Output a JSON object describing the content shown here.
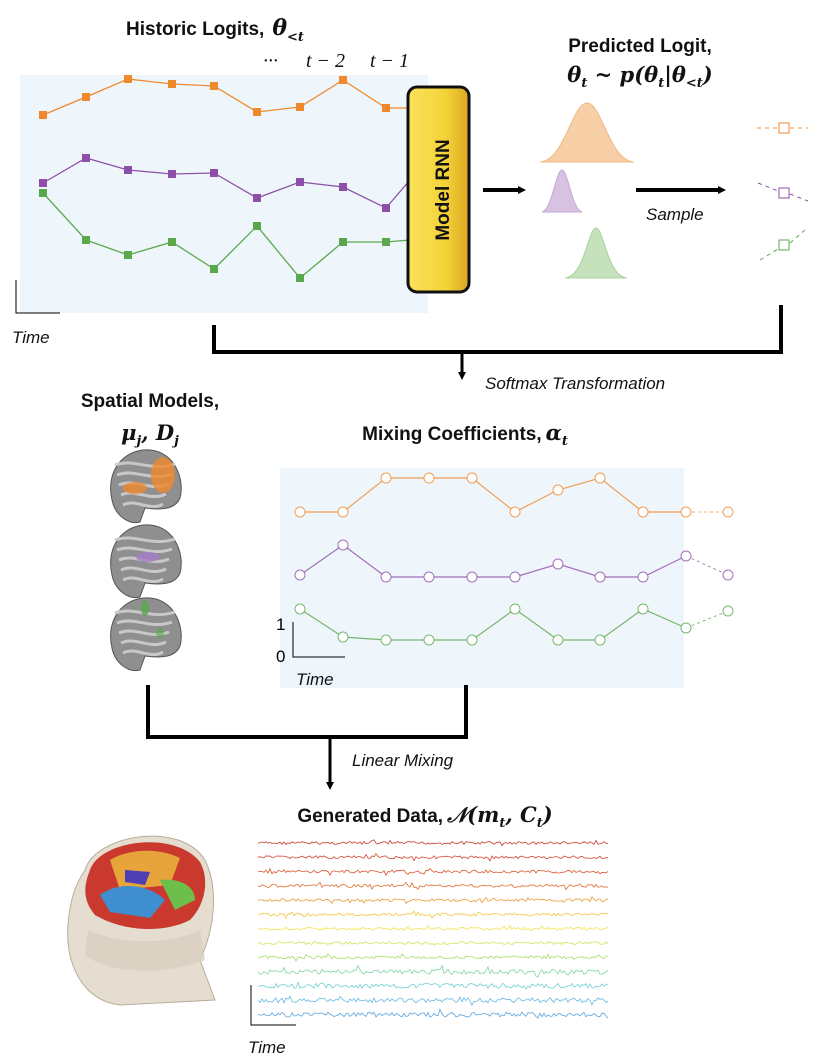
{
  "historic": {
    "title": "Historic Logits,",
    "sym": "θ",
    "sub": "<t",
    "ticks": [
      "···",
      "t − 2",
      "t − 1"
    ],
    "time": "Time"
  },
  "rnn": {
    "label": "Model RNN"
  },
  "predicted": {
    "title": "Predicted Logit,",
    "formula": "θ",
    "formula_sub": "t",
    "formula_rest": " ~ p(θ",
    "formula_sub2": "t",
    "formula_bar": "|θ",
    "formula_sub3": "<t",
    "formula_end": ")"
  },
  "sample_label": "Sample",
  "softmax_label": "Softmax Transformation",
  "spatial": {
    "title": "Spatial Models,",
    "sym": "μ",
    "sub": "j",
    "sym2": ", D",
    "sub2": "j"
  },
  "mixing": {
    "title": "Mixing Coefficients,",
    "sym": "α",
    "sub": "t",
    "y1": "1",
    "y0": "0",
    "time": "Time"
  },
  "linear_label": "Linear Mixing",
  "generated": {
    "title": "Generated Data,",
    "sym": "𝒩(m",
    "sub": "t",
    "sym2": ", C",
    "sub2": "t",
    "end": ")",
    "time": "Time"
  },
  "colors": {
    "orange": "#f0882c",
    "purple": "#8e4fa8",
    "green": "#5aa84c",
    "rnn": "#f5d43a",
    "panel": "#eef6fb"
  }
}
